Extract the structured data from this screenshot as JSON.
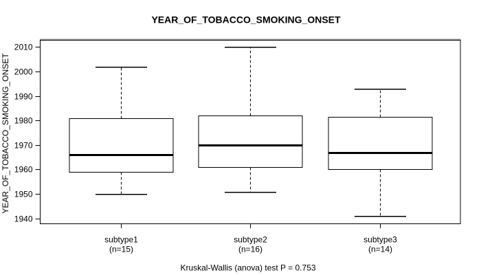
{
  "colors": {
    "background": "#ffffff",
    "stroke": "#000000",
    "frame_shadow": "#9b9b9b"
  },
  "chart_data": {
    "type": "boxplot",
    "title": "YEAR_OF_TOBACCO_SMOKING_ONSET",
    "ylabel": "YEAR_OF_TOBACCO_SMOKING_ONSET",
    "xlabel": "",
    "ylim": [
      1937.8,
      2012.8
    ],
    "xlim": [
      0.38,
      3.62
    ],
    "yticks": [
      1940,
      1950,
      1960,
      1970,
      1980,
      1990,
      2000,
      2010
    ],
    "box_width": 0.8,
    "grid": false,
    "legend": "none",
    "groups": [
      {
        "position": 1,
        "label": "subtype1",
        "count_label": "(n=15)",
        "n": 15,
        "whisker_low": 1950,
        "q1": 1959,
        "median": 1966,
        "q3": 1981,
        "whisker_high": 2002
      },
      {
        "position": 2,
        "label": "subtype2",
        "count_label": "(n=16)",
        "n": 16,
        "whisker_low": 1951,
        "q1": 1961,
        "median": 1970,
        "q3": 1982,
        "whisker_high": 2010
      },
      {
        "position": 3,
        "label": "subtype3",
        "count_label": "(n=14)",
        "n": 14,
        "whisker_low": 1941,
        "q1": 1960,
        "median": 1967,
        "q3": 1981.5,
        "whisker_high": 1993
      }
    ],
    "annotation": "Kruskal-Wallis (anova) test P = 0.753"
  }
}
